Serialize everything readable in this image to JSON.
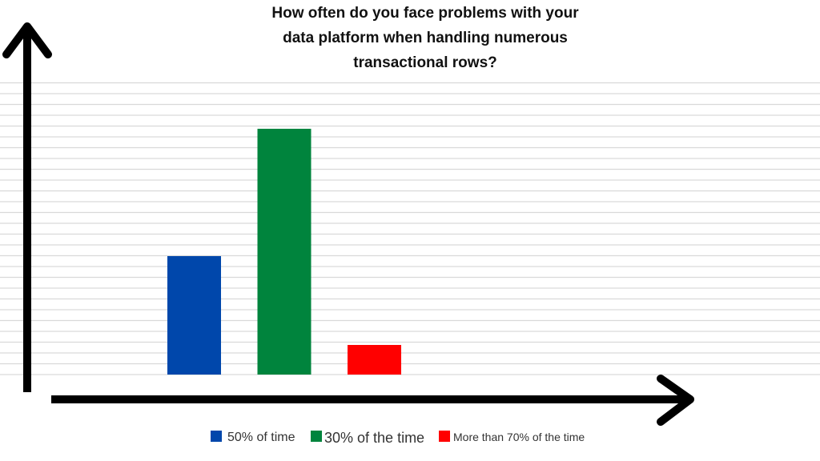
{
  "chart_data": {
    "type": "bar",
    "title_lines": [
      "How often do you face problems with your",
      "data platform when handling numerous",
      "transactional rows?"
    ],
    "categories": [
      "50% of time",
      "30% of the time",
      "More than 70% of the time"
    ],
    "values": [
      40,
      83,
      10
    ],
    "colors": [
      "#0047ab",
      "#00843d",
      "#ff0000"
    ],
    "ylim": [
      0,
      100
    ],
    "xlabel": "",
    "ylabel": "",
    "grid": true,
    "legend": {
      "placement": "bottom",
      "entries": [
        {
          "label": "50% of time",
          "color": "#0047ab"
        },
        {
          "label": "30% of the time",
          "color": "#00843d"
        },
        {
          "label": "More than 70% of the time",
          "color": "#ff0000"
        }
      ]
    }
  }
}
